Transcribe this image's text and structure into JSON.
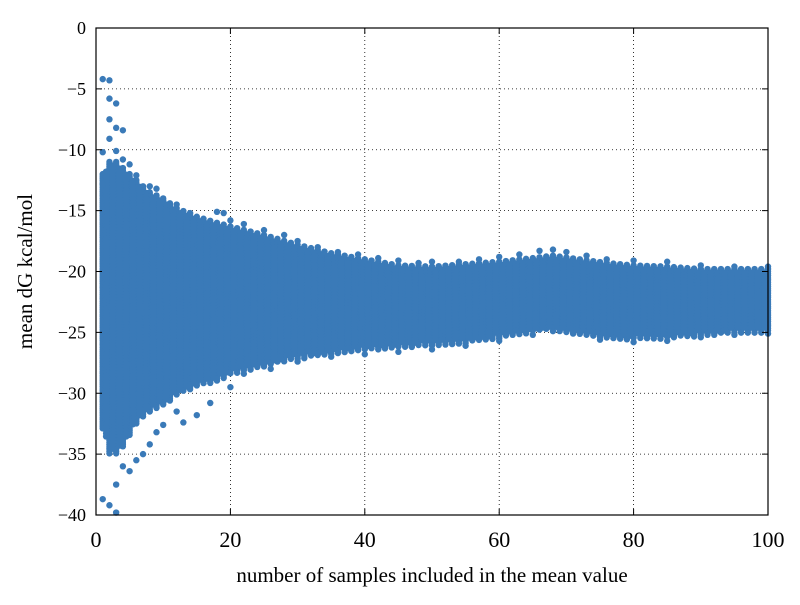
{
  "chart_data": {
    "type": "scatter",
    "title": "",
    "xlabel": "number of samples included in the mean value",
    "ylabel": "mean dG kcal/mol",
    "xlim": [
      0,
      100
    ],
    "ylim": [
      -40,
      0
    ],
    "xticks": [
      0,
      20,
      40,
      60,
      80,
      100
    ],
    "yticks": [
      0,
      -5,
      -10,
      -15,
      -20,
      -25,
      -30,
      -35,
      -40
    ],
    "grid": true,
    "grid_style": "dotted",
    "point_color": "#3a7ab8",
    "series": [
      {
        "values": [
          {
            "x": 1,
            "y": -4.2
          },
          {
            "x": 2,
            "y": -4.3
          },
          {
            "x": 2,
            "y": -5.8
          },
          {
            "x": 3,
            "y": -6.2
          },
          {
            "x": 2,
            "y": -7.5
          },
          {
            "x": 3,
            "y": -8.2
          },
          {
            "x": 4,
            "y": -8.4
          },
          {
            "x": 2,
            "y": -9.1
          },
          {
            "x": 3,
            "y": -10.1
          },
          {
            "x": 1,
            "y": -10.2
          },
          {
            "x": 4,
            "y": -10.8
          },
          {
            "x": 1,
            "y": -12.8
          },
          {
            "x": 5,
            "y": -11.2
          },
          {
            "x": 6,
            "y": -12.1
          },
          {
            "x": 8,
            "y": -13.0
          },
          {
            "x": 9,
            "y": -13.2
          },
          {
            "x": 12,
            "y": -14.5
          },
          {
            "x": 14,
            "y": -15.2
          },
          {
            "x": 18,
            "y": -15.1
          },
          {
            "x": 19,
            "y": -15.2
          },
          {
            "x": 20,
            "y": -15.8
          },
          {
            "x": 22,
            "y": -16.1
          },
          {
            "x": 25,
            "y": -16.6
          },
          {
            "x": 28,
            "y": -17.0
          },
          {
            "x": 30,
            "y": -17.5
          },
          {
            "x": 33,
            "y": -18.0
          },
          {
            "x": 36,
            "y": -18.4
          },
          {
            "x": 39,
            "y": -18.6
          },
          {
            "x": 42,
            "y": -18.9
          },
          {
            "x": 45,
            "y": -19.1
          },
          {
            "x": 48,
            "y": -19.3
          },
          {
            "x": 50,
            "y": -19.2
          },
          {
            "x": 54,
            "y": -19.2
          },
          {
            "x": 57,
            "y": -19.0
          },
          {
            "x": 60,
            "y": -18.8
          },
          {
            "x": 63,
            "y": -18.6
          },
          {
            "x": 66,
            "y": -18.3
          },
          {
            "x": 68,
            "y": -18.2
          },
          {
            "x": 70,
            "y": -18.4
          },
          {
            "x": 73,
            "y": -18.7
          },
          {
            "x": 76,
            "y": -19.0
          },
          {
            "x": 80,
            "y": -19.1
          },
          {
            "x": 85,
            "y": -19.2
          },
          {
            "x": 90,
            "y": -19.5
          },
          {
            "x": 95,
            "y": -19.6
          },
          {
            "x": 100,
            "y": -19.6
          },
          {
            "x": 1,
            "y": -38.7
          },
          {
            "x": 2,
            "y": -39.2
          },
          {
            "x": 3,
            "y": -39.8
          },
          {
            "x": 3,
            "y": -37.5
          },
          {
            "x": 4,
            "y": -36.0
          },
          {
            "x": 5,
            "y": -36.4
          },
          {
            "x": 6,
            "y": -35.5
          },
          {
            "x": 7,
            "y": -35.0
          },
          {
            "x": 8,
            "y": -34.2
          },
          {
            "x": 9,
            "y": -33.2
          },
          {
            "x": 10,
            "y": -32.6
          },
          {
            "x": 12,
            "y": -31.5
          },
          {
            "x": 13,
            "y": -32.4
          },
          {
            "x": 15,
            "y": -31.8
          },
          {
            "x": 17,
            "y": -30.8
          },
          {
            "x": 20,
            "y": -29.5
          },
          {
            "x": 22,
            "y": -28.4
          },
          {
            "x": 26,
            "y": -28.0
          },
          {
            "x": 30,
            "y": -27.4
          },
          {
            "x": 35,
            "y": -27.0
          },
          {
            "x": 40,
            "y": -26.8
          },
          {
            "x": 45,
            "y": -26.6
          },
          {
            "x": 50,
            "y": -26.4
          },
          {
            "x": 55,
            "y": -26.1
          },
          {
            "x": 60,
            "y": -25.7
          },
          {
            "x": 65,
            "y": -25.2
          },
          {
            "x": 68,
            "y": -24.9
          },
          {
            "x": 71,
            "y": -25.1
          },
          {
            "x": 75,
            "y": -25.6
          },
          {
            "x": 80,
            "y": -25.8
          },
          {
            "x": 85,
            "y": -25.7
          },
          {
            "x": 90,
            "y": -25.4
          },
          {
            "x": 95,
            "y": -25.2
          },
          {
            "x": 100,
            "y": -25.1
          }
        ]
      }
    ],
    "envelope": {
      "x": [
        1,
        2,
        3,
        4,
        5,
        6,
        8,
        10,
        12,
        15,
        18,
        20,
        25,
        30,
        35,
        40,
        45,
        50,
        55,
        60,
        65,
        68,
        72,
        76,
        80,
        85,
        90,
        95,
        100
      ],
      "upper": [
        -12.0,
        -11.0,
        -11.0,
        -11.5,
        -12.0,
        -12.5,
        -13.5,
        -14.0,
        -14.8,
        -15.5,
        -16.0,
        -16.3,
        -17.0,
        -17.8,
        -18.5,
        -19.0,
        -19.5,
        -19.6,
        -19.4,
        -19.2,
        -18.9,
        -18.7,
        -19.0,
        -19.3,
        -19.5,
        -19.6,
        -19.8,
        -19.8,
        -19.8
      ],
      "lower": [
        -33.0,
        -35.0,
        -35.0,
        -34.5,
        -33.5,
        -32.5,
        -31.5,
        -31.0,
        -30.2,
        -29.5,
        -29.0,
        -28.5,
        -27.8,
        -27.2,
        -26.8,
        -26.5,
        -26.3,
        -26.1,
        -25.9,
        -25.5,
        -25.0,
        -24.8,
        -25.2,
        -25.5,
        -25.6,
        -25.5,
        -25.3,
        -25.1,
        -25.0
      ]
    }
  }
}
